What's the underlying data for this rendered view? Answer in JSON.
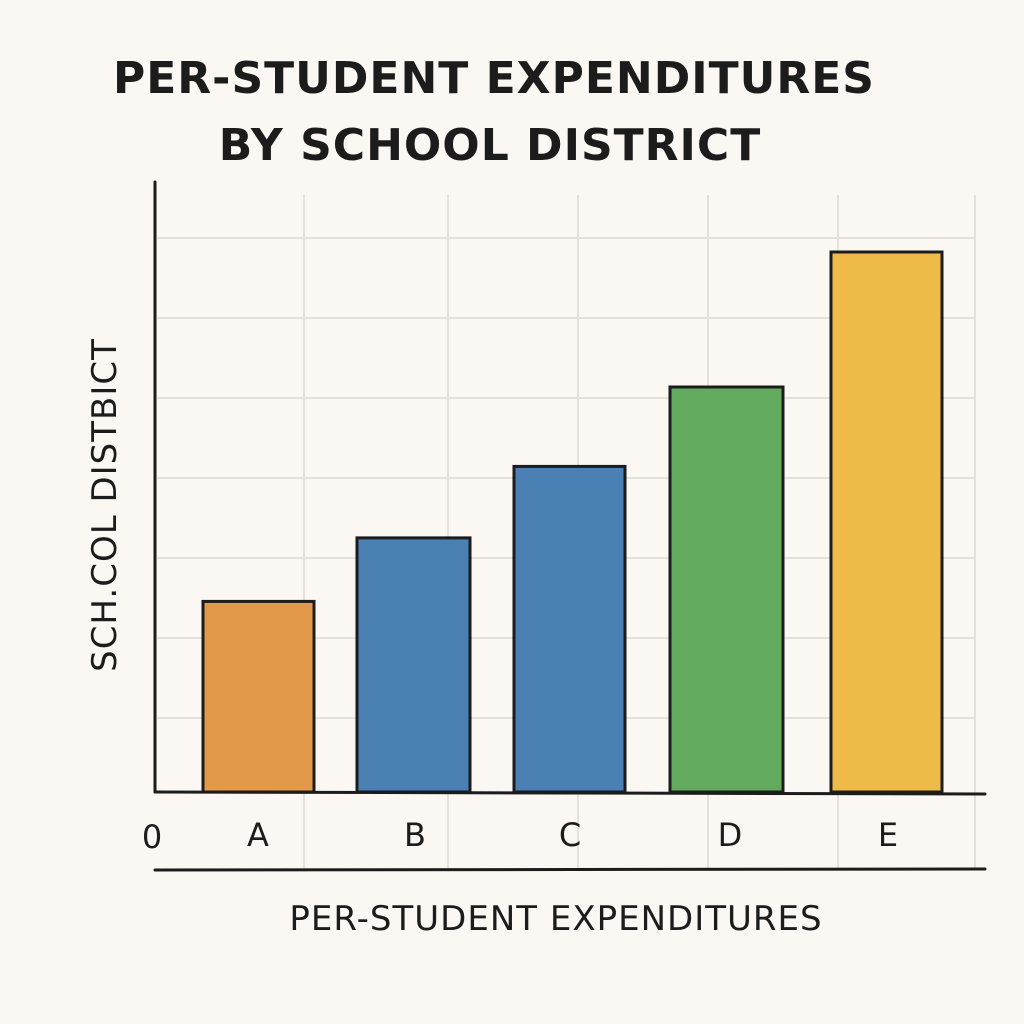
{
  "chart_data": {
    "type": "bar",
    "title_lines": [
      "PER-STUDENT EXPENDITURES",
      "BY SCHOOL DISTRICT"
    ],
    "xlabel": "PER-STUDENT EXPENDITURES",
    "ylabel": "SCH.COL DISTBICT",
    "origin_label": "0",
    "categories": [
      "A",
      "B",
      "C",
      "D",
      "E"
    ],
    "values": [
      2.4,
      3.2,
      4.1,
      5.1,
      6.8
    ],
    "colors": [
      "#e29a4a",
      "#4a80b3",
      "#4a80b3",
      "#62ab5e",
      "#efbb48"
    ],
    "ylim": [
      0,
      7
    ],
    "grid": true,
    "legend": "none"
  }
}
